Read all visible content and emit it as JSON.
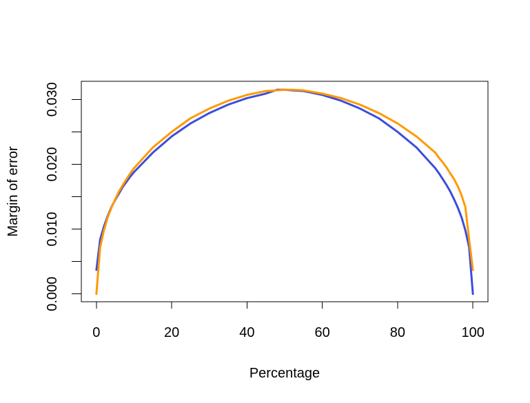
{
  "chart_data": {
    "type": "line",
    "title": "",
    "xlabel": "Percentage",
    "ylabel": "Margin of error",
    "xlim": [
      -4,
      104
    ],
    "ylim": [
      -0.0012,
      0.0328
    ],
    "x_ticks": [
      0,
      20,
      40,
      60,
      80,
      100
    ],
    "x_tick_labels": [
      "0",
      "20",
      "40",
      "60",
      "80",
      "100"
    ],
    "y_ticks": [
      0.0,
      0.005,
      0.01,
      0.015,
      0.02,
      0.025,
      0.03
    ],
    "y_tick_labels": [
      "0.000",
      "",
      "0.010",
      "",
      "0.020",
      "",
      "0.030"
    ],
    "grid": false,
    "legend": "none",
    "series": [
      {
        "color": "#3b4ddb",
        "x": [
          0,
          1,
          2,
          3,
          4,
          5,
          6,
          7,
          8,
          9,
          10,
          15,
          20,
          25,
          30,
          35,
          40,
          45,
          48,
          50,
          52,
          55,
          60,
          65,
          70,
          75,
          80,
          85,
          90,
          91,
          92,
          93,
          94,
          95,
          96,
          97,
          98,
          99,
          100
        ],
        "y": [
          0.0037,
          0.0084,
          0.0104,
          0.012,
          0.0134,
          0.0145,
          0.0155,
          0.0165,
          0.0173,
          0.0181,
          0.0188,
          0.0218,
          0.0243,
          0.0263,
          0.0279,
          0.0292,
          0.0302,
          0.0309,
          0.0315,
          0.0315,
          0.0314,
          0.0313,
          0.0307,
          0.0298,
          0.0286,
          0.0271,
          0.025,
          0.0226,
          0.0194,
          0.0186,
          0.0177,
          0.0168,
          0.0158,
          0.0146,
          0.0133,
          0.0118,
          0.0098,
          0.0072,
          0.0
        ]
      },
      {
        "color": "#ff9900",
        "x": [
          0,
          1,
          2,
          3,
          4,
          5,
          6,
          7,
          8,
          9,
          10,
          15,
          20,
          25,
          30,
          35,
          40,
          45,
          48,
          50,
          52,
          55,
          60,
          65,
          70,
          75,
          80,
          85,
          90,
          91,
          92,
          93,
          94,
          95,
          96,
          97,
          98,
          99,
          100
        ],
        "y": [
          0.0,
          0.0072,
          0.0098,
          0.0118,
          0.0133,
          0.0146,
          0.0158,
          0.0168,
          0.0177,
          0.0186,
          0.0194,
          0.0226,
          0.025,
          0.0271,
          0.0286,
          0.0298,
          0.0307,
          0.0313,
          0.0314,
          0.0315,
          0.0315,
          0.0314,
          0.0309,
          0.0302,
          0.0292,
          0.0279,
          0.0263,
          0.0243,
          0.0218,
          0.021,
          0.0203,
          0.0195,
          0.0186,
          0.0177,
          0.0166,
          0.0152,
          0.0134,
          0.0084,
          0.0037
        ]
      }
    ]
  }
}
